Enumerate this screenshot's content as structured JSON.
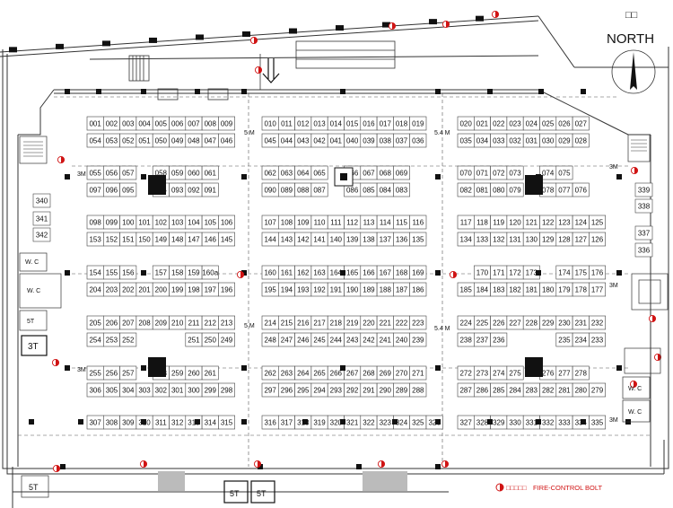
{
  "compass": {
    "glyphs": "□□",
    "label": "NORTH"
  },
  "legend": {
    "prefix": "□□□□□",
    "label": "FIRE-CONTROL BOLT",
    "color": "#d01414"
  },
  "dimensions": {
    "five_m": "5 M",
    "five_four_m": "5.4 M",
    "three_m": "3M"
  },
  "rooms": {
    "wc": "W. C",
    "three_t": "3T",
    "five_t": "5T"
  },
  "booths": {
    "rows": [
      {
        "id": "r1",
        "cells": [
          [
            "001",
            "002",
            "003",
            "004",
            "005",
            "006",
            "007",
            "008",
            "009"
          ],
          [
            "010",
            "011",
            "012",
            "013",
            "014",
            "015",
            "016",
            "017",
            "018",
            "019"
          ],
          [
            "020",
            "021",
            "022",
            "023",
            "024",
            "025",
            "026",
            "027"
          ]
        ]
      },
      {
        "id": "r2",
        "cells": [
          [
            "054",
            "053",
            "052",
            "051",
            "050",
            "049",
            "048",
            "047",
            "046"
          ],
          [
            "045",
            "044",
            "043",
            "042",
            "041",
            "040",
            "039",
            "038",
            "037",
            "036"
          ],
          [
            "035",
            "034",
            "033",
            "032",
            "031",
            "030",
            "029",
            "028"
          ]
        ]
      },
      {
        "id": "r3",
        "cells": [
          [
            "055",
            "056",
            "057",
            "",
            "058",
            "059",
            "060",
            "061"
          ],
          [
            "062",
            "063",
            "064",
            "065",
            "",
            "066",
            "067",
            "068",
            "069"
          ],
          [
            "070",
            "071",
            "072",
            "073",
            "",
            "074",
            "075"
          ]
        ]
      },
      {
        "id": "r4",
        "cells": [
          [
            "097",
            "096",
            "095",
            "",
            "094",
            "093",
            "092",
            "091"
          ],
          [
            "090",
            "089",
            "088",
            "087",
            "",
            "086",
            "085",
            "084",
            "083"
          ],
          [
            "082",
            "081",
            "080",
            "079",
            "",
            "078",
            "077",
            "076"
          ]
        ]
      },
      {
        "id": "r5",
        "cells": [
          [
            "098",
            "099",
            "100",
            "101",
            "102",
            "103",
            "104",
            "105",
            "106"
          ],
          [
            "107",
            "108",
            "109",
            "110",
            "111",
            "112",
            "113",
            "114",
            "115",
            "116"
          ],
          [
            "117",
            "118",
            "119",
            "120",
            "121",
            "122",
            "123",
            "124",
            "125"
          ]
        ]
      },
      {
        "id": "r6",
        "cells": [
          [
            "153",
            "152",
            "151",
            "150",
            "149",
            "148",
            "147",
            "146",
            "145"
          ],
          [
            "144",
            "143",
            "142",
            "141",
            "140",
            "139",
            "138",
            "137",
            "136",
            "135"
          ],
          [
            "134",
            "133",
            "132",
            "131",
            "130",
            "129",
            "128",
            "127",
            "126"
          ]
        ]
      },
      {
        "id": "r7",
        "cells": [
          [
            "154",
            "155",
            "156",
            "",
            "157",
            "158",
            "159",
            "160a"
          ],
          [
            "160",
            "161",
            "162",
            "163",
            "164",
            "165",
            "166",
            "167",
            "168",
            "169"
          ],
          [
            "",
            "170",
            "171",
            "172",
            "173",
            "",
            "174",
            "175",
            "176"
          ]
        ]
      },
      {
        "id": "r8",
        "cells": [
          [
            "204",
            "203",
            "202",
            "201",
            "200",
            "199",
            "198",
            "197",
            "196"
          ],
          [
            "195",
            "194",
            "193",
            "192",
            "191",
            "190",
            "189",
            "188",
            "187",
            "186"
          ],
          [
            "185",
            "184",
            "183",
            "182",
            "181",
            "180",
            "179",
            "178",
            "177"
          ]
        ]
      },
      {
        "id": "r9",
        "cells": [
          [
            "205",
            "206",
            "207",
            "208",
            "209",
            "210",
            "211",
            "212",
            "213"
          ],
          [
            "214",
            "215",
            "216",
            "217",
            "218",
            "219",
            "220",
            "221",
            "222",
            "223"
          ],
          [
            "224",
            "225",
            "226",
            "227",
            "228",
            "229",
            "230",
            "231",
            "232"
          ]
        ]
      },
      {
        "id": "r10",
        "cells": [
          [
            "254",
            "253",
            "252",
            "",
            "",
            "",
            "251",
            "250",
            "249"
          ],
          [
            "248",
            "247",
            "246",
            "245",
            "244",
            "243",
            "242",
            "241",
            "240",
            "239"
          ],
          [
            "238",
            "237",
            "236",
            "",
            "",
            "",
            "235",
            "234",
            "233"
          ]
        ]
      },
      {
        "id": "r11",
        "cells": [
          [
            "255",
            "256",
            "257",
            "",
            "258",
            "259",
            "260",
            "261"
          ],
          [
            "262",
            "263",
            "264",
            "265",
            "266",
            "267",
            "268",
            "269",
            "270",
            "271"
          ],
          [
            "272",
            "273",
            "274",
            "275",
            "",
            "276",
            "277",
            "278"
          ]
        ]
      },
      {
        "id": "r12",
        "cells": [
          [
            "306",
            "305",
            "304",
            "303",
            "302",
            "301",
            "300",
            "299",
            "298"
          ],
          [
            "297",
            "296",
            "295",
            "294",
            "293",
            "292",
            "291",
            "290",
            "289",
            "288"
          ],
          [
            "287",
            "286",
            "285",
            "284",
            "283",
            "282",
            "281",
            "280",
            "279"
          ]
        ]
      },
      {
        "id": "r13",
        "cells": [
          [
            "307",
            "308",
            "309",
            "310",
            "311",
            "312",
            "313",
            "314",
            "315"
          ],
          [
            "316",
            "317",
            "318",
            "319",
            "320",
            "321",
            "322",
            "323",
            "324",
            "325",
            "326"
          ],
          [
            "327",
            "328",
            "329",
            "330",
            "331",
            "332",
            "333",
            "334",
            "335"
          ]
        ]
      }
    ],
    "side": [
      "340",
      "341",
      "342",
      "339",
      "338",
      "337",
      "336"
    ]
  }
}
